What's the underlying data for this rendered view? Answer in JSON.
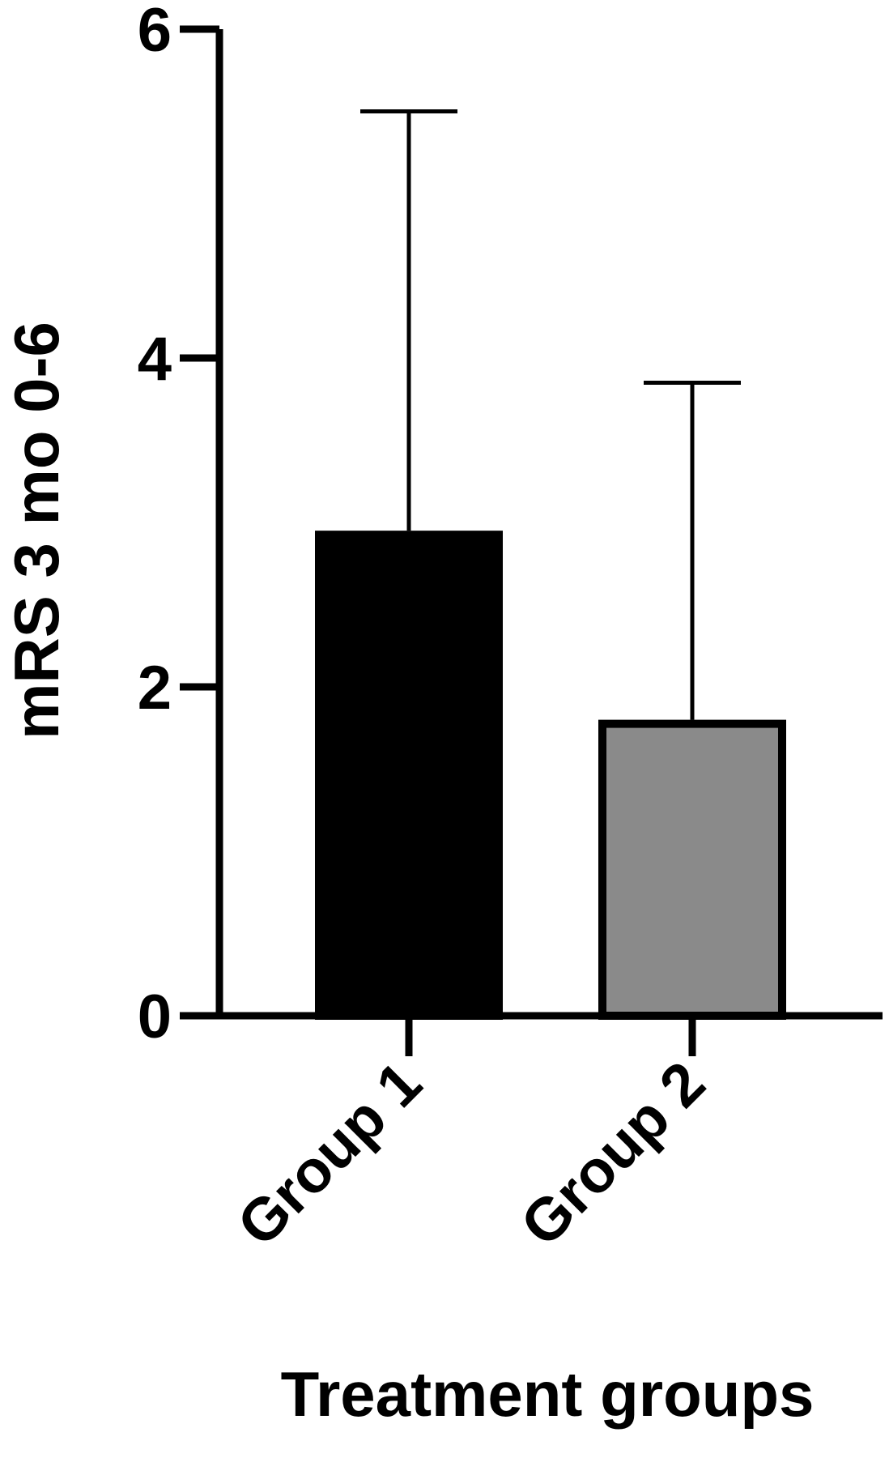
{
  "chart_data": {
    "type": "bar",
    "categories": [
      "Group 1",
      "Group 2"
    ],
    "values": [
      2.95,
      1.8
    ],
    "error_upper": [
      5.5,
      3.85
    ],
    "ylim": [
      0,
      6
    ],
    "yticks": [
      0,
      2,
      4,
      6
    ],
    "ytick_labels": [
      "0",
      "2",
      "4",
      "6"
    ],
    "xlabel": "Treatment groups",
    "ylabel": "mRS 3 mo 0-6",
    "grid": false,
    "legend": false,
    "bar_colors": [
      "#000000",
      "#8a8a8a"
    ],
    "bar_edge_color": "#000000"
  }
}
